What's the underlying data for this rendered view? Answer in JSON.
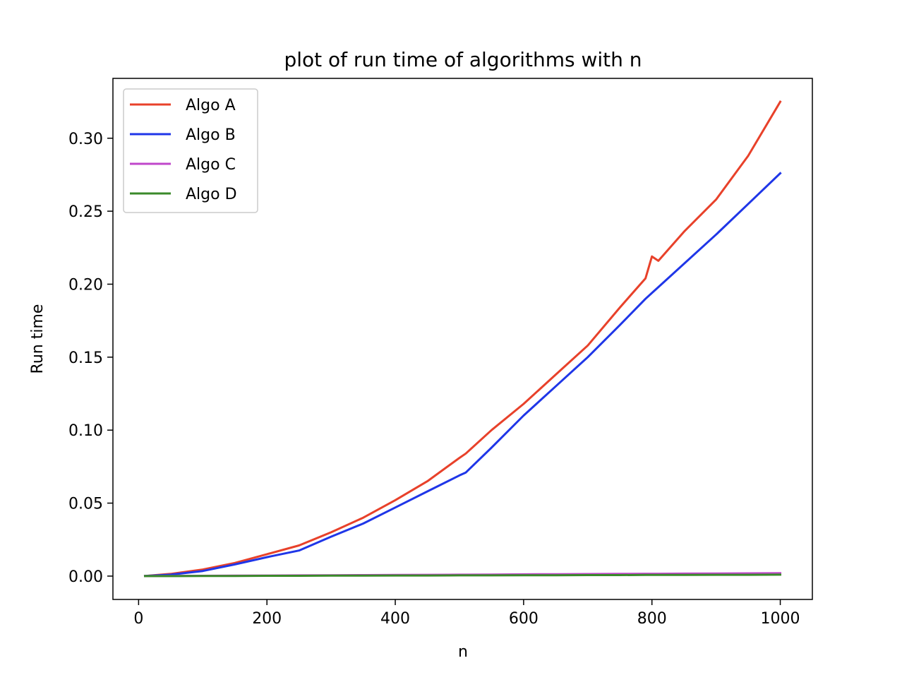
{
  "chart_data": {
    "type": "line",
    "title": "plot of run time of algorithms with n",
    "xlabel": "n",
    "ylabel": "Run time",
    "xlim": [
      -40,
      1050
    ],
    "ylim": [
      -0.016,
      0.341
    ],
    "xticks": [
      0,
      200,
      400,
      600,
      800,
      1000
    ],
    "xtick_labels": [
      "0",
      "200",
      "400",
      "600",
      "800",
      "1000"
    ],
    "yticks": [
      0.0,
      0.05,
      0.1,
      0.15,
      0.2,
      0.25,
      0.3
    ],
    "ytick_labels": [
      "0.00",
      "0.05",
      "0.10",
      "0.15",
      "0.20",
      "0.25",
      "0.30"
    ],
    "grid": false,
    "legend_position": "top-left",
    "x": [
      10,
      50,
      100,
      150,
      200,
      250,
      300,
      350,
      400,
      450,
      500,
      510,
      550,
      600,
      650,
      700,
      750,
      790,
      800,
      810,
      850,
      900,
      950,
      1000
    ],
    "series": [
      {
        "name": "Algo A",
        "color": "#e8412a",
        "values": [
          0.0001,
          0.0015,
          0.0045,
          0.009,
          0.015,
          0.021,
          0.03,
          0.04,
          0.052,
          0.065,
          0.081,
          0.084,
          0.1,
          0.118,
          0.138,
          0.158,
          0.184,
          0.204,
          0.219,
          0.216,
          0.236,
          0.258,
          0.288,
          0.325
        ]
      },
      {
        "name": "Algo B",
        "color": "#1f36e8",
        "values": [
          0.0001,
          0.001,
          0.0035,
          0.008,
          0.013,
          0.0175,
          0.027,
          0.036,
          0.047,
          0.058,
          0.069,
          0.071,
          0.088,
          0.11,
          0.13,
          0.15,
          0.172,
          0.19,
          0.194,
          0.198,
          0.214,
          0.234,
          0.255,
          0.276
        ]
      },
      {
        "name": "Algo C",
        "color": "#c047cb",
        "values": [
          0.0,
          0.0001,
          0.0002,
          0.0003,
          0.0004,
          0.0005,
          0.0006,
          0.0007,
          0.0008,
          0.0009,
          0.001,
          0.001,
          0.0011,
          0.0012,
          0.0013,
          0.0014,
          0.0015,
          0.0016,
          0.0016,
          0.0016,
          0.0017,
          0.0018,
          0.0019,
          0.002
        ]
      },
      {
        "name": "Algo D",
        "color": "#3a8a2a",
        "values": [
          0.0,
          0.0,
          0.0001,
          0.0001,
          0.0002,
          0.0002,
          0.0003,
          0.0003,
          0.0004,
          0.0004,
          0.0005,
          0.0005,
          0.0005,
          0.0006,
          0.0006,
          0.0007,
          0.0007,
          0.0008,
          0.0008,
          0.0008,
          0.0008,
          0.0009,
          0.0009,
          0.001
        ]
      }
    ]
  }
}
